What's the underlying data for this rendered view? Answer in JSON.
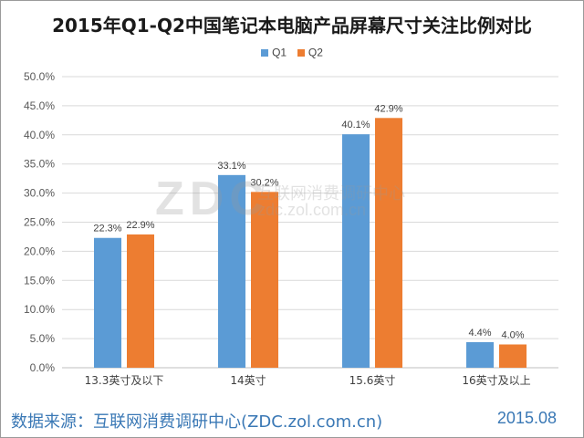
{
  "chart_data": {
    "type": "bar",
    "title": "2015年Q1-Q2中国笔记本电脑产品屏幕尺寸关注比例对比",
    "categories": [
      "13.3英寸及以下",
      "14英寸",
      "15.6英寸",
      "16英寸及以上"
    ],
    "series": [
      {
        "name": "Q1",
        "values": [
          22.3,
          33.1,
          40.1,
          4.4
        ],
        "color": "#5b9bd5"
      },
      {
        "name": "Q2",
        "values": [
          22.9,
          30.2,
          42.9,
          4.0
        ],
        "color": "#ed7d31"
      }
    ],
    "ylim": [
      0,
      50
    ],
    "y_ticks": [
      "0.0%",
      "5.0%",
      "10.0%",
      "15.0%",
      "20.0%",
      "25.0%",
      "30.0%",
      "35.0%",
      "40.0%",
      "45.0%",
      "50.0%"
    ],
    "data_labels": [
      [
        "22.3%",
        "33.1%",
        "40.1%",
        "4.4%"
      ],
      [
        "22.9%",
        "30.2%",
        "42.9%",
        "4.0%"
      ]
    ],
    "legend_position": "top",
    "grid": true,
    "grid_color": "#d9d9d9"
  },
  "watermark": {
    "logo": "ZDC",
    "text_cn": "互联网消费调研中心",
    "url": "zdc.zol.com.cn"
  },
  "footer": {
    "source": "数据来源：互联网消费调研中心(ZDC.zol.com.cn)",
    "date": "2015.08",
    "color": "#3a78b5"
  }
}
